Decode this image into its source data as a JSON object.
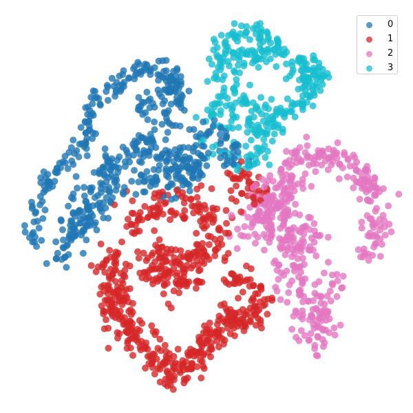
{
  "chart_data": {
    "type": "scatter",
    "title": "",
    "xlabel": "",
    "ylabel": "",
    "axes_visible": false,
    "grid": false,
    "legend_position": "top-right",
    "series": [
      {
        "name": "0",
        "color": "#1f77b4",
        "clusters": [
          {
            "points": [
              [
                45,
                355
              ],
              [
                55,
                300
              ],
              [
                70,
                255
              ],
              [
                100,
                238
              ],
              [
                120,
                215
              ],
              [
                135,
                160
              ],
              [
                150,
                135
              ],
              [
                175,
                120
              ],
              [
                205,
                100
              ],
              [
                230,
                95
              ],
              [
                250,
                110
              ],
              [
                265,
                150
              ]
            ],
            "spread": 7,
            "count": 170
          },
          {
            "points": [
              [
                85,
                375
              ],
              [
                105,
                350
              ],
              [
                120,
                300
              ],
              [
                140,
                280
              ],
              [
                165,
                240
              ],
              [
                210,
                210
              ],
              [
                245,
                225
              ],
              [
                270,
                240
              ],
              [
                290,
                255
              ]
            ],
            "spread": 11,
            "count": 210
          },
          {
            "points": [
              [
                120,
                330
              ],
              [
                175,
                275
              ],
              [
                230,
                255
              ],
              [
                255,
                270
              ],
              [
                285,
                215
              ],
              [
                300,
                190
              ],
              [
                325,
                210
              ],
              [
                340,
                240
              ]
            ],
            "spread": 12,
            "count": 150
          },
          {
            "points": [
              [
                230,
                120
              ],
              [
                260,
                130
              ],
              [
                210,
                160
              ],
              [
                255,
                180
              ]
            ],
            "spread": 9,
            "count": 60
          }
        ]
      },
      {
        "name": "1",
        "color": "#d62728",
        "clusters": [
          {
            "points": [
              [
                160,
                370
              ],
              [
                165,
                430
              ],
              [
                180,
                475
              ],
              [
                205,
                495
              ],
              [
                230,
                520
              ],
              [
                250,
                545
              ],
              [
                265,
                530
              ]
            ],
            "spread": 13,
            "count": 220
          },
          {
            "points": [
              [
                190,
                330
              ],
              [
                230,
                300
              ],
              [
                270,
                290
              ],
              [
                300,
                310
              ],
              [
                320,
                330
              ],
              [
                310,
                365
              ],
              [
                280,
                380
              ],
              [
                245,
                370
              ],
              [
                210,
                390
              ],
              [
                250,
                410
              ],
              [
                285,
                400
              ]
            ],
            "spread": 13,
            "count": 260
          },
          {
            "points": [
              [
                330,
                410
              ],
              [
                355,
                400
              ],
              [
                375,
                430
              ],
              [
                360,
                465
              ],
              [
                330,
                480
              ],
              [
                305,
                490
              ],
              [
                285,
                510
              ],
              [
                275,
                535
              ],
              [
                340,
                445
              ]
            ],
            "spread": 10,
            "count": 170
          },
          {
            "points": [
              [
                330,
                260
              ],
              [
                355,
                250
              ],
              [
                380,
                280
              ],
              [
                340,
                300
              ]
            ],
            "spread": 9,
            "count": 40
          }
        ]
      },
      {
        "name": "2",
        "color": "#e377c2",
        "clusters": [
          {
            "points": [
              [
                360,
                320
              ],
              [
                390,
                295
              ],
              [
                420,
                275
              ],
              [
                400,
                340
              ],
              [
                430,
                360
              ],
              [
                455,
                330
              ],
              [
                420,
                400
              ],
              [
                440,
                430
              ],
              [
                455,
                460
              ],
              [
                460,
                495
              ],
              [
                480,
                410
              ]
            ],
            "spread": 14,
            "count": 280
          },
          {
            "points": [
              [
                420,
                235
              ],
              [
                455,
                225
              ],
              [
                490,
                230
              ],
              [
                510,
                245
              ],
              [
                530,
                265
              ],
              [
                545,
                280
              ],
              [
                550,
                320
              ],
              [
                540,
                350
              ],
              [
                535,
                375
              ]
            ],
            "spread": 10,
            "count": 160
          },
          {
            "points": [
              [
                340,
                345
              ],
              [
                370,
                330
              ],
              [
                400,
                250
              ],
              [
                445,
                265
              ]
            ],
            "spread": 9,
            "count": 50
          }
        ]
      },
      {
        "name": "3",
        "color": "#17becf",
        "clusters": [
          {
            "points": [
              [
                310,
                105
              ],
              [
                320,
                70
              ],
              [
                345,
                50
              ],
              [
                375,
                45
              ],
              [
                400,
                60
              ],
              [
                395,
                80
              ],
              [
                360,
                80
              ],
              [
                330,
                90
              ]
            ],
            "spread": 9,
            "count": 120
          },
          {
            "points": [
              [
                330,
                140
              ],
              [
                360,
                155
              ],
              [
                385,
                160
              ],
              [
                400,
                185
              ],
              [
                375,
                200
              ],
              [
                350,
                185
              ],
              [
                310,
                165
              ],
              [
                335,
                120
              ]
            ],
            "spread": 10,
            "count": 110
          },
          {
            "points": [
              [
                410,
                165
              ],
              [
                440,
                150
              ],
              [
                455,
                120
              ],
              [
                465,
                100
              ],
              [
                445,
                95
              ],
              [
                430,
                85
              ],
              [
                455,
                135
              ]
            ],
            "spread": 8,
            "count": 100
          },
          {
            "points": [
              [
                290,
                200
              ],
              [
                320,
                230
              ],
              [
                365,
                240
              ],
              [
                400,
                215
              ]
            ],
            "spread": 7,
            "count": 30
          }
        ]
      }
    ]
  }
}
